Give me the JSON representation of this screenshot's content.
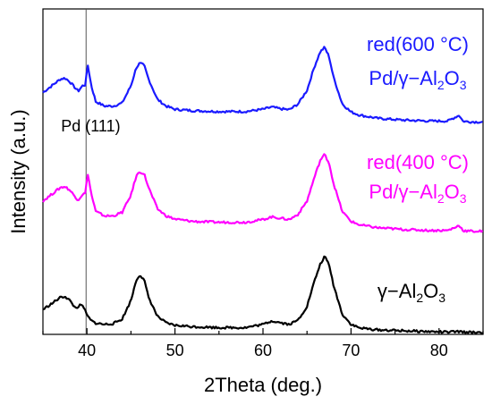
{
  "chart_data": {
    "type": "line",
    "xlabel": "2Theta (deg.)",
    "ylabel": "Intensity (a.u.)",
    "xlim": [
      35,
      85
    ],
    "xticks": [
      40,
      50,
      60,
      70,
      80
    ],
    "ylim": [
      0,
      7.2
    ],
    "yticks_shown": false,
    "grid": false,
    "reference_line": {
      "x": 39.9,
      "label": "Pd (111)"
    },
    "series": [
      {
        "color": "#1a1aff",
        "label_line1": "red(600 °C)",
        "label_line2_pre": "Pd/γ−Al",
        "label_sub1": "2",
        "label_mid": "O",
        "label_sub2": "3",
        "x": [
          35,
          36,
          37,
          37.5,
          38,
          39,
          39.5,
          39.8,
          40.1,
          40.5,
          41,
          42,
          43,
          44,
          45,
          45.6,
          46,
          46.5,
          47,
          48,
          49,
          50,
          52,
          55,
          58,
          60,
          61,
          62,
          63,
          64,
          65,
          65.8,
          66.5,
          67,
          67.5,
          68,
          69,
          70,
          71,
          73,
          76,
          79,
          81,
          82,
          82.3,
          82.7,
          83,
          84,
          85
        ],
        "y": [
          5.35,
          5.5,
          5.65,
          5.67,
          5.6,
          5.38,
          5.5,
          5.52,
          5.95,
          5.5,
          5.15,
          5.05,
          5.05,
          5.12,
          5.5,
          5.9,
          6.0,
          5.95,
          5.65,
          5.2,
          5.05,
          4.98,
          4.95,
          4.93,
          4.93,
          4.98,
          5.03,
          4.99,
          4.97,
          5.1,
          5.4,
          5.9,
          6.25,
          6.35,
          6.15,
          5.7,
          5.1,
          4.92,
          4.85,
          4.78,
          4.74,
          4.72,
          4.72,
          4.82,
          4.85,
          4.72,
          4.71,
          4.7,
          4.7
        ]
      },
      {
        "color": "#ff00ff",
        "label_line1": "red(400 °C)",
        "label_line2_pre": "Pd/γ−Al",
        "label_sub1": "2",
        "label_mid": "O",
        "label_sub2": "3",
        "x": [
          35,
          36,
          37,
          37.5,
          38,
          39,
          39.5,
          39.8,
          40.1,
          40.5,
          41,
          42,
          43,
          44,
          45,
          45.6,
          46,
          46.5,
          47,
          48,
          49,
          50,
          52,
          55,
          58,
          60,
          61,
          62,
          63,
          64,
          65,
          65.8,
          66.5,
          67,
          67.5,
          68,
          69,
          70,
          71,
          73,
          76,
          79,
          81,
          82,
          82.3,
          82.7,
          83,
          84,
          85
        ],
        "y": [
          2.95,
          3.1,
          3.25,
          3.27,
          3.2,
          2.97,
          3.1,
          3.12,
          3.55,
          3.1,
          2.72,
          2.62,
          2.62,
          2.7,
          3.08,
          3.5,
          3.6,
          3.55,
          3.25,
          2.78,
          2.62,
          2.55,
          2.5,
          2.48,
          2.48,
          2.54,
          2.6,
          2.57,
          2.54,
          2.66,
          2.95,
          3.45,
          3.85,
          3.98,
          3.8,
          3.35,
          2.72,
          2.5,
          2.42,
          2.36,
          2.32,
          2.3,
          2.3,
          2.38,
          2.42,
          2.3,
          2.29,
          2.28,
          2.28
        ]
      },
      {
        "color": "#000000",
        "label_line1": "",
        "label_line2_pre": "γ−Al",
        "label_sub1": "2",
        "label_mid": "O",
        "label_sub2": "3",
        "x": [
          35,
          36,
          37,
          37.5,
          38,
          38.7,
          39.2,
          39.6,
          40,
          40.5,
          41,
          42,
          43,
          44,
          45,
          45.6,
          46,
          46.5,
          47,
          48,
          49,
          50,
          52,
          55,
          58,
          60,
          61,
          62,
          63,
          64,
          65,
          65.8,
          66.5,
          67,
          67.5,
          68,
          69,
          70,
          71,
          73,
          76,
          79,
          81,
          82,
          83,
          84,
          85
        ],
        "y": [
          0.55,
          0.68,
          0.82,
          0.84,
          0.76,
          0.58,
          0.64,
          0.62,
          0.42,
          0.3,
          0.25,
          0.22,
          0.24,
          0.34,
          0.75,
          1.2,
          1.32,
          1.2,
          0.82,
          0.4,
          0.25,
          0.2,
          0.17,
          0.15,
          0.15,
          0.22,
          0.3,
          0.26,
          0.22,
          0.32,
          0.62,
          1.15,
          1.55,
          1.72,
          1.55,
          1.1,
          0.45,
          0.22,
          0.14,
          0.1,
          0.08,
          0.06,
          0.05,
          0.06,
          0.05,
          0.04,
          0.05
        ]
      }
    ]
  }
}
